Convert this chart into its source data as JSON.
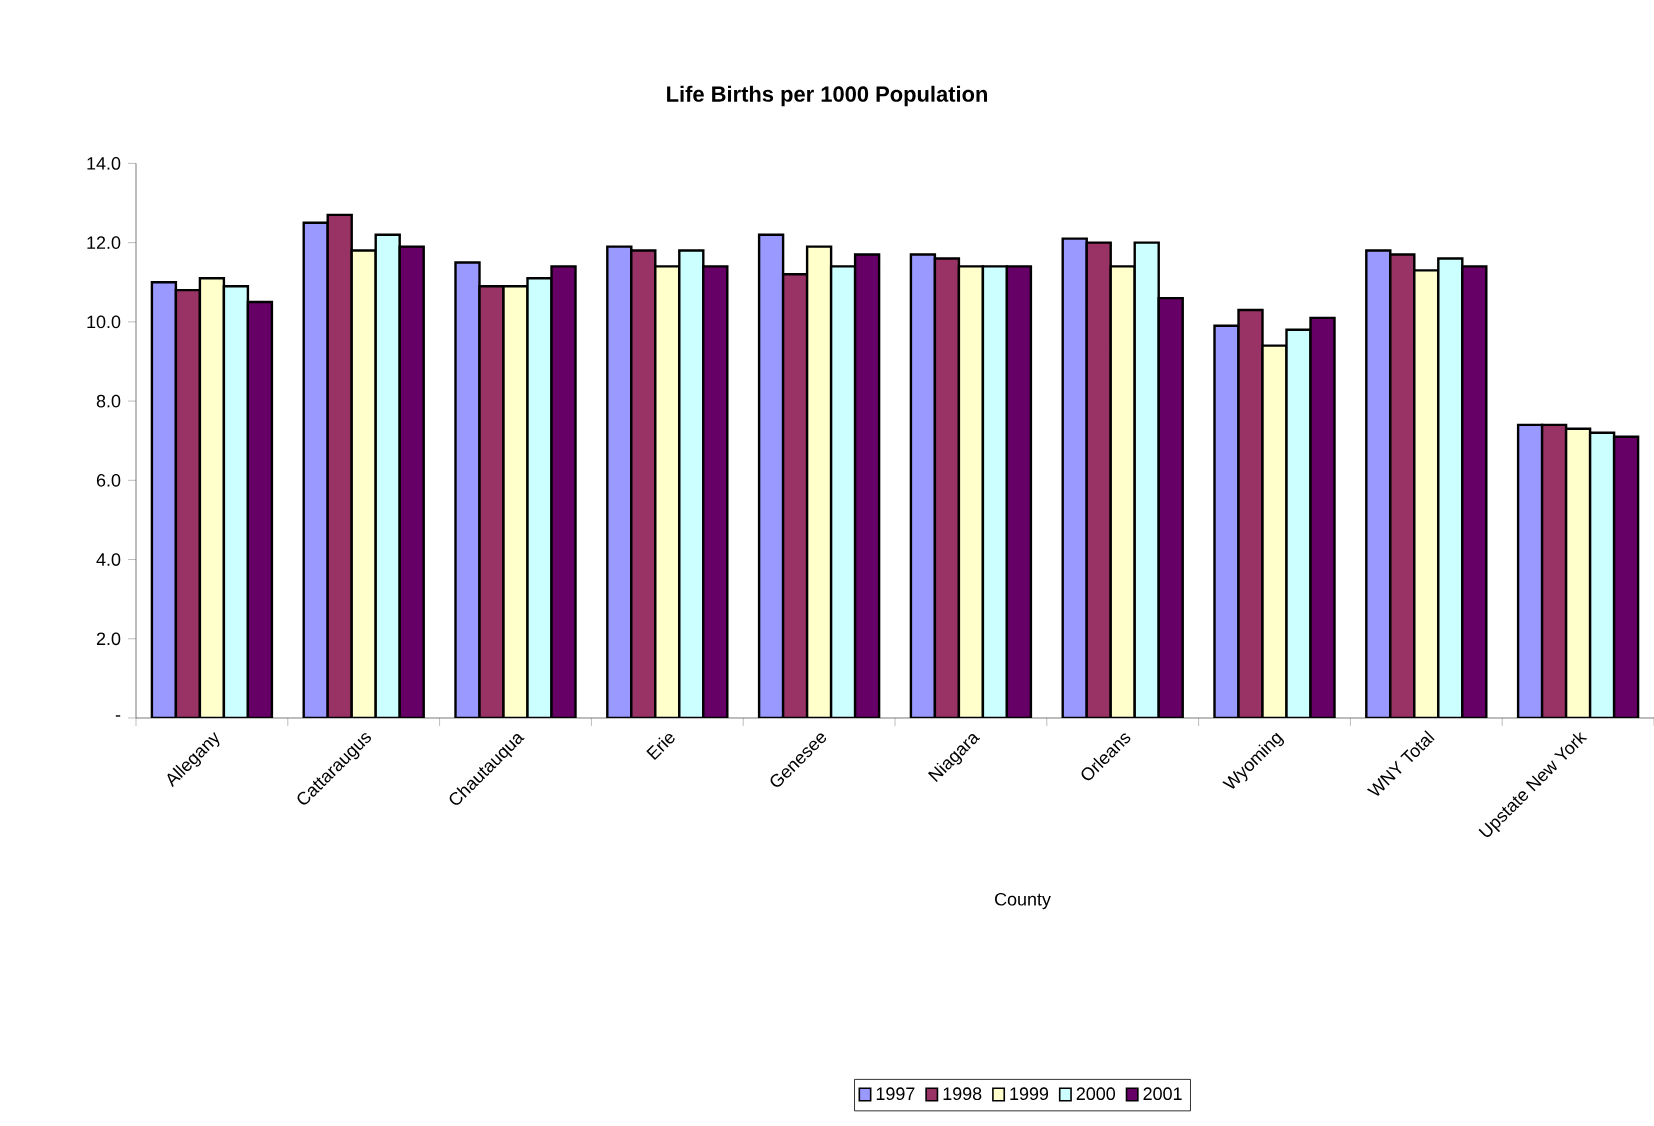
{
  "chart_data": {
    "type": "bar",
    "title": "Life Births per 1000 Population",
    "xlabel": "County",
    "categories": [
      "Allegany",
      "Cattaraugus",
      "Chautauqua",
      "Erie",
      "Genesee",
      "Niagara",
      "Orleans",
      "Wyoming",
      "WNY Total",
      "Upstate New York"
    ],
    "series": [
      {
        "name": "1997",
        "color": "#9999ff",
        "values": [
          11.0,
          12.5,
          11.5,
          11.9,
          12.2,
          11.7,
          12.1,
          9.9,
          11.8,
          7.4
        ]
      },
      {
        "name": "1998",
        "color": "#993366",
        "values": [
          10.8,
          12.7,
          10.9,
          11.8,
          11.2,
          11.6,
          12.0,
          10.3,
          11.7,
          7.4
        ]
      },
      {
        "name": "1999",
        "color": "#ffffcc",
        "values": [
          11.1,
          11.8,
          10.9,
          11.4,
          11.9,
          11.4,
          11.4,
          9.4,
          11.3,
          7.3
        ]
      },
      {
        "name": "2000",
        "color": "#ccffff",
        "values": [
          10.9,
          12.2,
          11.1,
          11.8,
          11.4,
          11.4,
          12.0,
          9.8,
          11.6,
          7.2
        ]
      },
      {
        "name": "2001",
        "color": "#660066",
        "values": [
          10.5,
          11.9,
          11.4,
          11.4,
          11.7,
          11.4,
          10.6,
          10.1,
          11.4,
          7.1
        ]
      }
    ],
    "ylim": [
      0,
      14
    ],
    "yticks": [
      {
        "value": 0,
        "label": "-"
      },
      {
        "value": 2,
        "label": "2.0"
      },
      {
        "value": 4,
        "label": "4.0"
      },
      {
        "value": 6,
        "label": "6.0"
      },
      {
        "value": 8,
        "label": "8.0"
      },
      {
        "value": 10,
        "label": "10.0"
      },
      {
        "value": 12,
        "label": "12.0"
      },
      {
        "value": 14,
        "label": "14.0"
      }
    ],
    "grid": false,
    "legend": "bottom"
  }
}
